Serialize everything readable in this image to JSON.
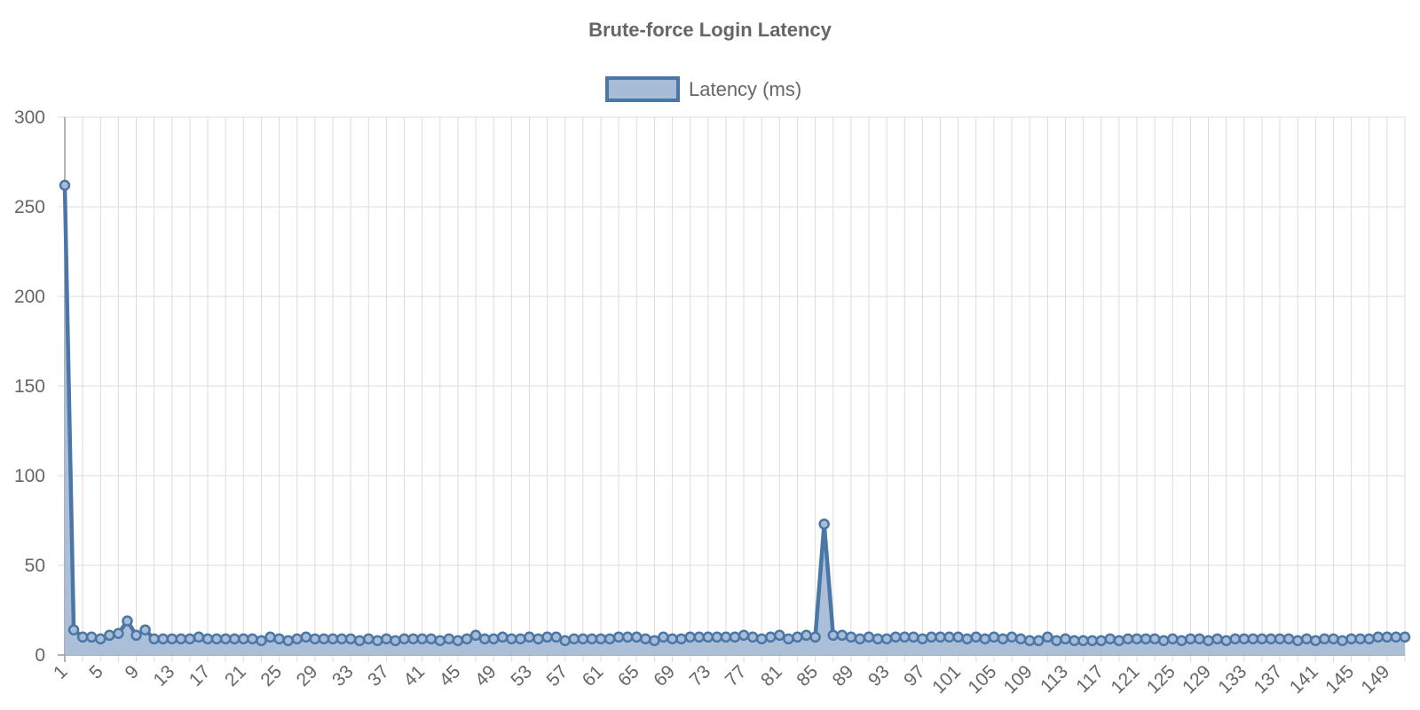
{
  "chart_data": {
    "type": "line",
    "title": "Brute-force Login Latency",
    "xlabel": "",
    "ylabel": "",
    "ylim": [
      0,
      300
    ],
    "yticks": [
      0,
      50,
      100,
      150,
      200,
      250,
      300
    ],
    "grid": true,
    "legend": "top",
    "series": [
      {
        "name": "Latency (ms)",
        "color": "#4a76a8",
        "fill": "#a8bcd6",
        "x": [
          1,
          2,
          3,
          4,
          5,
          6,
          7,
          8,
          9,
          10,
          11,
          12,
          13,
          14,
          15,
          16,
          17,
          18,
          19,
          20,
          21,
          22,
          23,
          24,
          25,
          26,
          27,
          28,
          29,
          30,
          31,
          32,
          33,
          34,
          35,
          36,
          37,
          38,
          39,
          40,
          41,
          42,
          43,
          44,
          45,
          46,
          47,
          48,
          49,
          50,
          51,
          52,
          53,
          54,
          55,
          56,
          57,
          58,
          59,
          60,
          61,
          62,
          63,
          64,
          65,
          66,
          67,
          68,
          69,
          70,
          71,
          72,
          73,
          74,
          75,
          76,
          77,
          78,
          79,
          80,
          81,
          82,
          83,
          84,
          85,
          86,
          87,
          88,
          89,
          90,
          91,
          92,
          93,
          94,
          95,
          96,
          97,
          98,
          99,
          100,
          101,
          102,
          103,
          104,
          105,
          106,
          107,
          108,
          109,
          110,
          111,
          112,
          113,
          114,
          115,
          116,
          117,
          118,
          119,
          120,
          121,
          122,
          123,
          124,
          125,
          126,
          127,
          128,
          129,
          130,
          131,
          132,
          133,
          134,
          135,
          136,
          137,
          138,
          139,
          140,
          141,
          142,
          143,
          144,
          145,
          146,
          147,
          148,
          149,
          150,
          151
        ],
        "values": [
          262,
          14,
          10,
          10,
          9,
          11,
          12,
          19,
          11,
          14,
          9,
          9,
          9,
          9,
          9,
          10,
          9,
          9,
          9,
          9,
          9,
          9,
          8,
          10,
          9,
          8,
          9,
          10,
          9,
          9,
          9,
          9,
          9,
          8,
          9,
          8,
          9,
          8,
          9,
          9,
          9,
          9,
          8,
          9,
          8,
          9,
          11,
          9,
          9,
          10,
          9,
          9,
          10,
          9,
          10,
          10,
          8,
          9,
          9,
          9,
          9,
          9,
          10,
          10,
          10,
          9,
          8,
          10,
          9,
          9,
          10,
          10,
          10,
          10,
          10,
          10,
          11,
          10,
          9,
          10,
          11,
          9,
          10,
          11,
          10,
          73,
          11,
          11,
          10,
          9,
          10,
          9,
          9,
          10,
          10,
          10,
          9,
          10,
          10,
          10,
          10,
          9,
          10,
          9,
          10,
          9,
          10,
          9,
          8,
          8,
          10,
          8,
          9,
          8,
          8,
          8,
          8,
          9,
          8,
          9,
          9,
          9,
          9,
          8,
          9,
          8,
          9,
          9,
          8,
          9,
          8,
          9,
          9,
          9,
          9,
          9,
          9,
          9,
          8,
          9,
          8,
          9,
          9,
          8,
          9,
          9,
          9,
          10,
          10,
          10,
          10
        ]
      }
    ]
  }
}
